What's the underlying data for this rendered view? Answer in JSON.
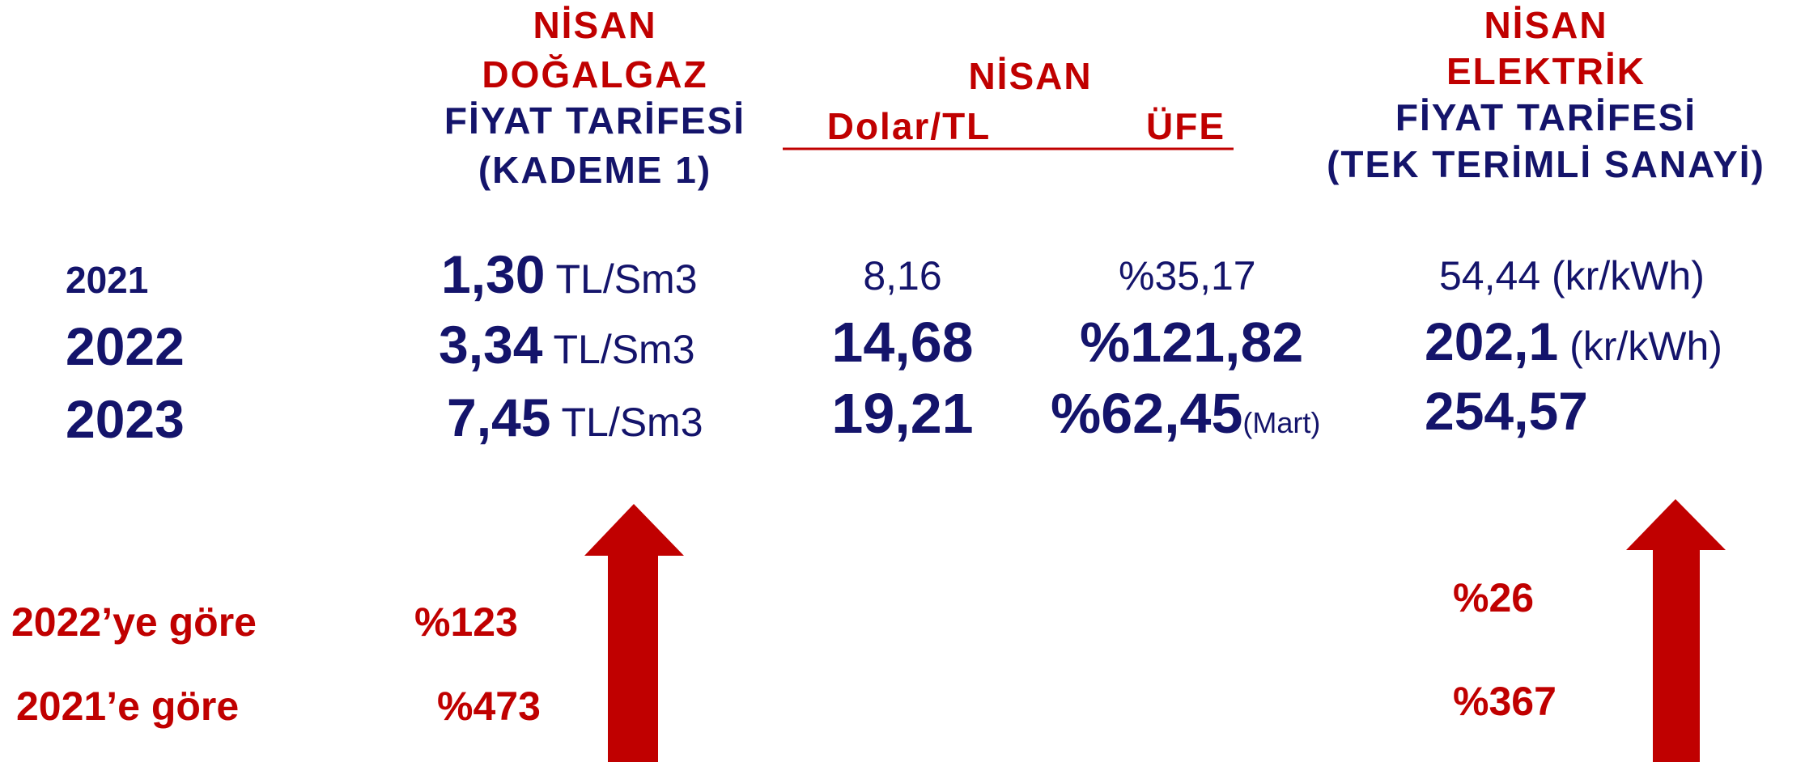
{
  "gas_header": {
    "lines": [
      "NİSAN",
      "DOĞALGAZ",
      "FİYAT TARİFESİ",
      "(KADEME 1)"
    ]
  },
  "middle_header": {
    "title": "NİSAN",
    "columns": [
      "Dolar/TL",
      "ÜFE"
    ]
  },
  "electricity_header": {
    "lines": [
      "NİSAN",
      "ELEKTRİK",
      "FİYAT TARİFESİ",
      "(TEK TERİMLİ SANAYİ)"
    ]
  },
  "rows": [
    {
      "year": "2021",
      "gas": "1,30",
      "gas_unit": "TL/Sm3",
      "dollar": "8,16",
      "ufe": "%35,17",
      "electricity": "54,44",
      "electricity_unit": "(kr/kWh)"
    },
    {
      "year": "2022",
      "gas": "3,34",
      "gas_unit": "TL/Sm3",
      "dollar": "14,68",
      "ufe": "%121,82",
      "electricity": "202,1",
      "electricity_unit": "(kr/kWh)"
    },
    {
      "year": "2023",
      "gas": "7,45",
      "gas_unit": "TL/Sm3",
      "dollar": "19,21",
      "ufe": "%62,45",
      "ufe_note": "(Mart)",
      "electricity": "254,57"
    }
  ],
  "comparisons": [
    {
      "label": "2022’ye göre",
      "gas": "%123",
      "electricity": "%26"
    },
    {
      "label": "2021’e göre",
      "gas": "%473",
      "electricity": "%367"
    }
  ]
}
